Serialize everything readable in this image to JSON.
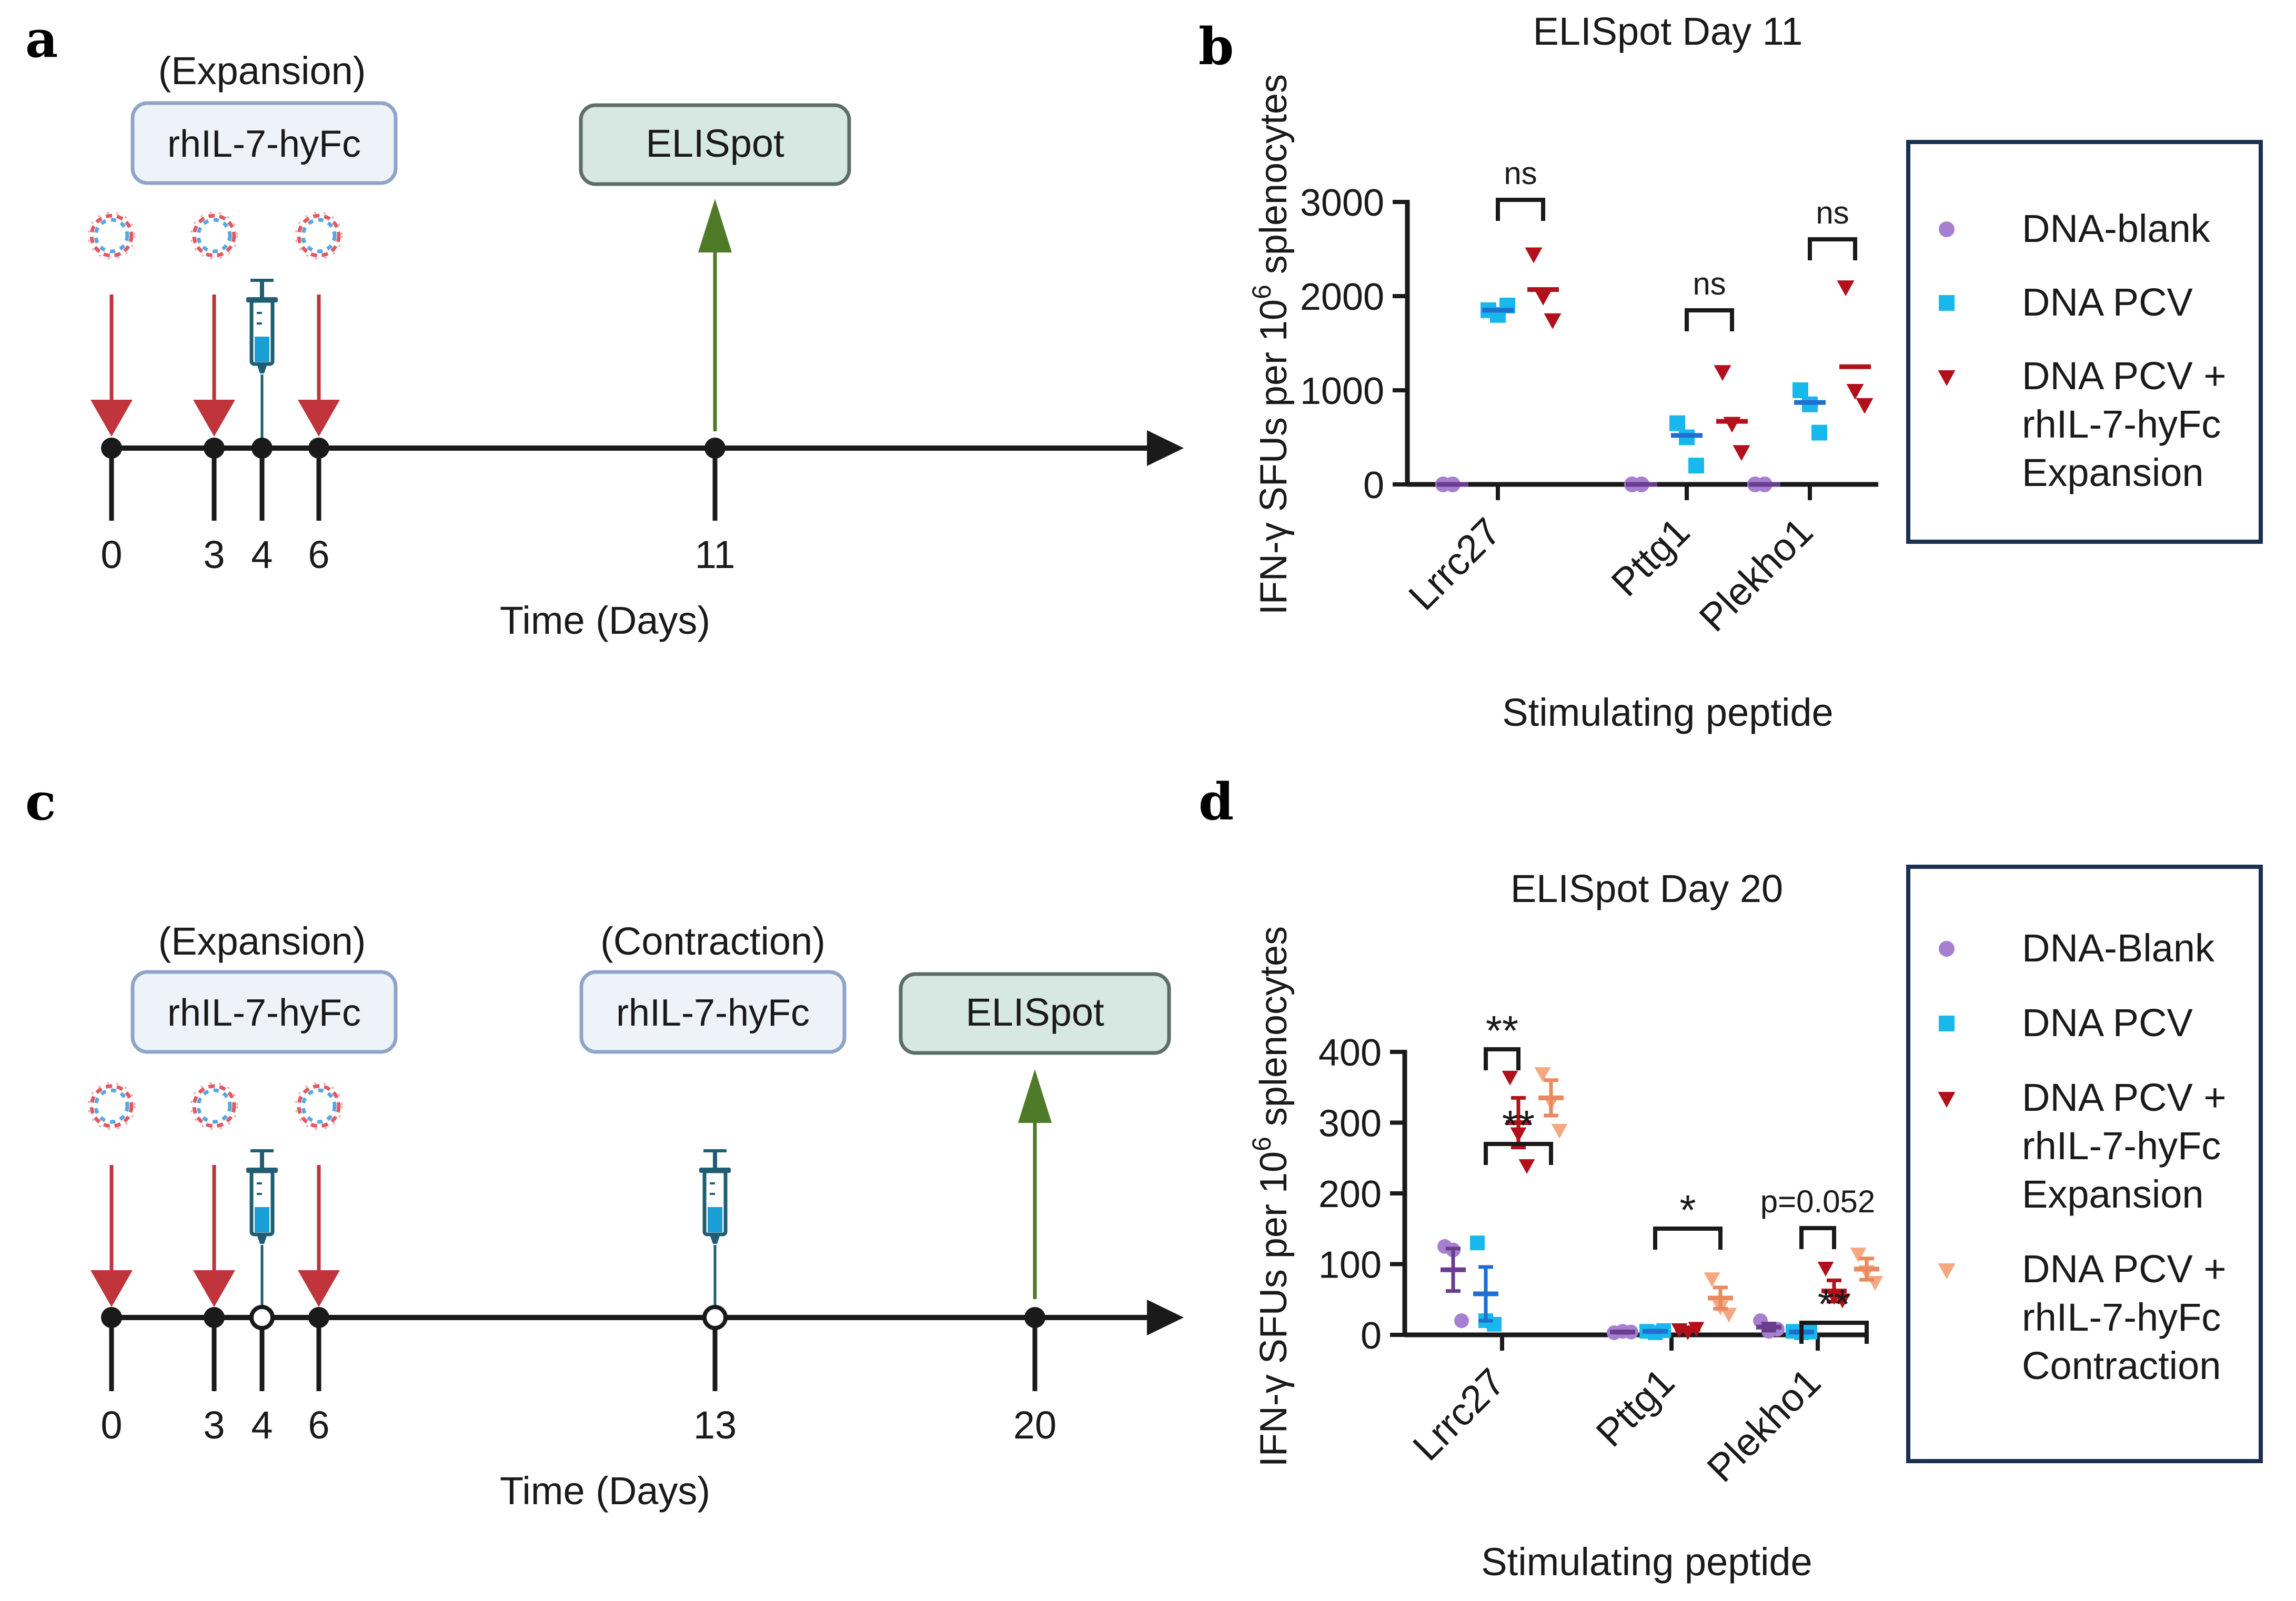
{
  "colors": {
    "arrow_red": "#c0343c",
    "arrow_green": "#4f7a28",
    "timeline": "#1a1a1a",
    "box_blue_fill": "#eef3fa",
    "box_blue_stroke": "#8ea5c8",
    "box_green_fill": "#d7e8e2",
    "box_green_stroke": "#5d6e68",
    "legend_border": "#1a3050",
    "blank": "#a77fd0",
    "blank_mean": "#6a3d8f",
    "pcv": "#19b8ec",
    "pcv_mean": "#1e6fd0",
    "expansion": "#b2101b",
    "contraction": "#f6a882",
    "contraction_mean": "#e8895f"
  },
  "panel_labels": {
    "a": "a",
    "b": "b",
    "c": "c",
    "d": "d"
  },
  "panel_a": {
    "expansion_label": "(Expansion)",
    "drug_box": "rhIL-7-hyFc",
    "readout_box": "ELISpot",
    "ticks": [
      "0",
      "3",
      "4",
      "6",
      "11"
    ],
    "xlabel": "Time (Days)",
    "dna_icon": "plasmid-dna-icon",
    "syringe_icon": "syringe-icon"
  },
  "panel_c": {
    "expansion_label": "(Expansion)",
    "contraction_label": "(Contraction)",
    "drug_box_1": "rhIL-7-hyFc",
    "drug_box_2": "rhIL-7-hyFc",
    "readout_box": "ELISpot",
    "ticks": [
      "0",
      "3",
      "4",
      "6",
      "13",
      "20"
    ],
    "xlabel": "Time (Days)"
  },
  "legend_b": {
    "items": [
      {
        "lines": [
          "DNA-blank"
        ]
      },
      {
        "lines": [
          "DNA PCV"
        ]
      },
      {
        "lines": [
          "DNA PCV +",
          "rhIL-7-hyFc",
          "Expansion"
        ]
      }
    ]
  },
  "legend_d": {
    "items": [
      {
        "lines": [
          "DNA-Blank"
        ]
      },
      {
        "lines": [
          "DNA PCV"
        ]
      },
      {
        "lines": [
          "DNA PCV +",
          "rhIL-7-hyFc",
          "Expansion"
        ]
      },
      {
        "lines": [
          "DNA PCV +",
          "rhIL-7-hyFc",
          "Contraction"
        ]
      }
    ]
  },
  "chart_data": [
    {
      "id": "b",
      "type": "scatter",
      "title": "ELISpot Day 11",
      "xlabel": "Stimulating peptide",
      "ylabel_main": "IFN-γ SFUs per 10",
      "ylabel_sup": "6",
      "ylabel_tail": " splenocytes",
      "ylim": [
        0,
        3000
      ],
      "yticks": [
        0,
        1000,
        2000,
        3000
      ],
      "categories": [
        "Lrrc27",
        "Pttg1",
        "Plekho1"
      ],
      "series": [
        {
          "name": "DNA-blank",
          "points": [
            [
              0,
              0
            ],
            [
              0,
              0
            ],
            [
              0,
              0
            ]
          ],
          "mean": [
            0,
            0,
            0
          ]
        },
        {
          "name": "DNA PCV",
          "points": [
            [
              1850,
              1800,
              1900
            ],
            [
              650,
              500,
              200
            ],
            [
              1000,
              850,
              550
            ]
          ],
          "mean": [
            1850,
            520,
            870
          ]
        },
        {
          "name": "DNA PCV + rhIL-7-hyFc Expansion",
          "points": [
            [
              2450,
              2000,
              1750
            ],
            [
              1200,
              650,
              350
            ],
            [
              2100,
              1000,
              850
            ]
          ],
          "mean": [
            2070,
            670,
            1250
          ]
        }
      ],
      "significance": [
        {
          "label": "ns",
          "category": 0,
          "pair": [
            1,
            2
          ]
        },
        {
          "label": "ns",
          "category": 1,
          "pair": [
            1,
            2
          ]
        },
        {
          "label": "ns",
          "category": 2,
          "pair": [
            1,
            2
          ]
        }
      ]
    },
    {
      "id": "d",
      "type": "scatter",
      "title": "ELISpot Day 20",
      "xlabel": "Stimulating peptide",
      "ylabel_main": "IFN-γ SFUs per 10",
      "ylabel_sup": "6",
      "ylabel_tail": " splenocytes",
      "ylim": [
        0,
        400
      ],
      "yticks": [
        0,
        100,
        200,
        300,
        400
      ],
      "categories": [
        "Lrrc27",
        "Pttg1",
        "Plekho1"
      ],
      "series": [
        {
          "name": "DNA-Blank",
          "points": [
            [
              125,
              120,
              20
            ],
            [
              3,
              5,
              4
            ],
            [
              20,
              5,
              8
            ]
          ],
          "mean": [
            92,
            4,
            11
          ],
          "err": [
            30,
            1,
            5
          ]
        },
        {
          "name": "DNA PCV",
          "points": [
            [
              130,
              20,
              15
            ],
            [
              5,
              3,
              6
            ],
            [
              5,
              3,
              4
            ]
          ],
          "mean": [
            58,
            5,
            4
          ],
          "err": [
            38,
            1,
            1
          ]
        },
        {
          "name": "DNA PCV + rhIL-7-hyFc Expansion",
          "points": [
            [
              365,
              285,
              240
            ],
            [
              8,
              5,
              10
            ],
            [
              95,
              55,
              50
            ]
          ],
          "mean": [
            300,
            8,
            62
          ],
          "err": [
            35,
            2,
            15
          ]
        },
        {
          "name": "DNA PCV + rhIL-7-hyFc Contraction",
          "points": [
            [
              370,
              330,
              290
            ],
            [
              80,
              40,
              30
            ],
            [
              115,
              90,
              75
            ]
          ],
          "mean": [
            335,
            52,
            93
          ],
          "err": [
            25,
            15,
            15
          ]
        }
      ],
      "significance": [
        {
          "label": "**",
          "category": 0,
          "pair": [
            1,
            2
          ]
        },
        {
          "label": "**",
          "category": 0,
          "pair": [
            1,
            3
          ]
        },
        {
          "label": "*",
          "category": 1,
          "pair": [
            1,
            3
          ]
        },
        {
          "label": "p=0.052",
          "category": 2,
          "pair": [
            1,
            2
          ]
        },
        {
          "label": "**",
          "category": 2,
          "pair": [
            1,
            3
          ]
        }
      ]
    }
  ]
}
